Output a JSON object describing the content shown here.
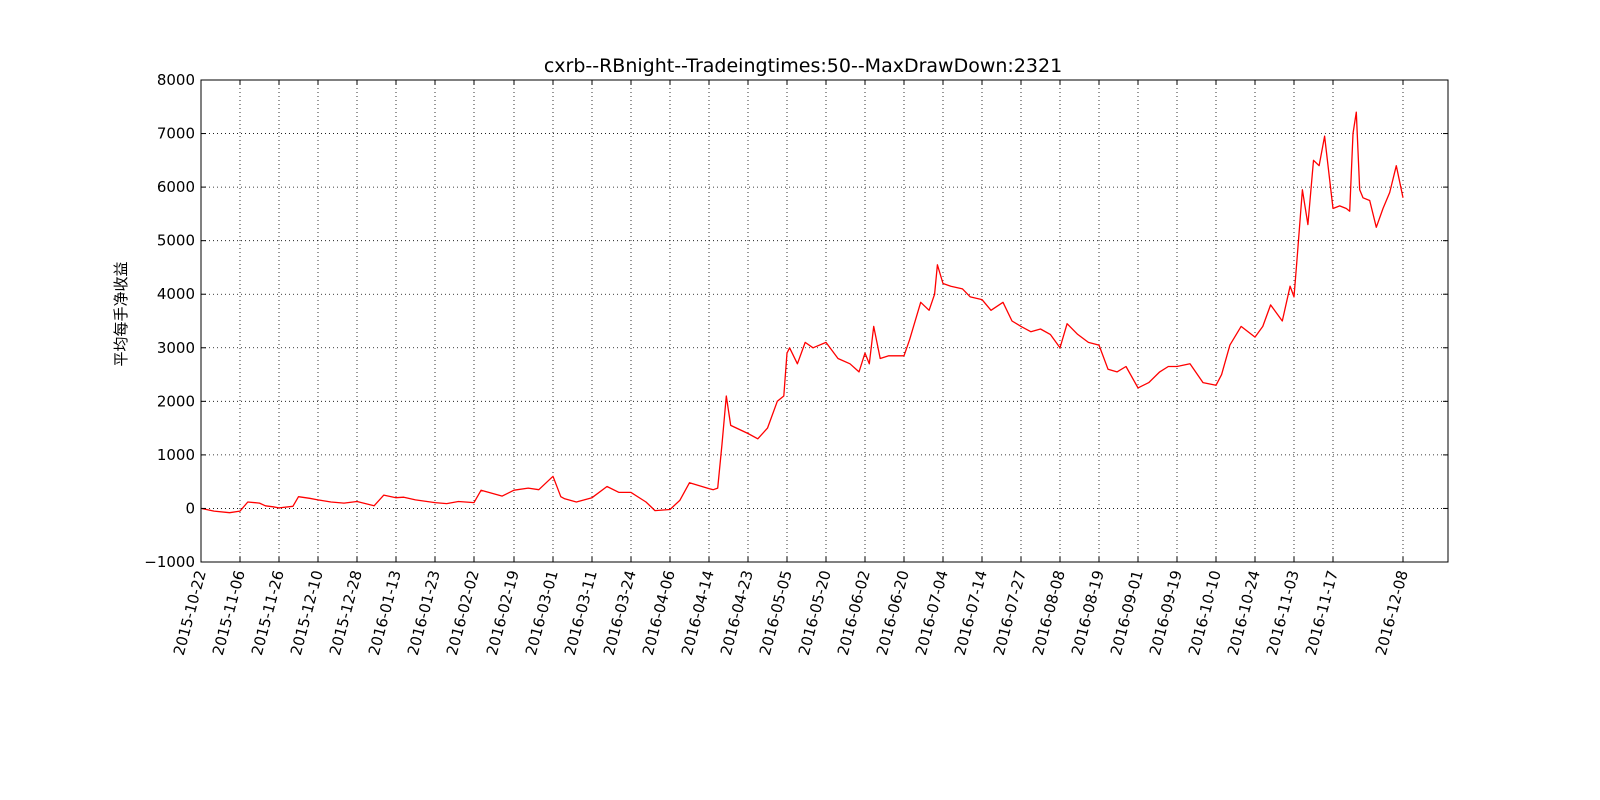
{
  "chart_data": {
    "type": "line",
    "title": "cxrb--RBnight--Tradeingtimes:50--MaxDrawDown:2321",
    "xlabel": "",
    "ylabel": "平均每手净收益",
    "ylim": [
      -1000,
      8000
    ],
    "yticks": [
      -1000,
      0,
      1000,
      2000,
      3000,
      4000,
      5000,
      6000,
      7000,
      8000
    ],
    "ytick_labels": [
      "−1000",
      "0",
      "1000",
      "2000",
      "3000",
      "4000",
      "5000",
      "6000",
      "7000",
      "8000"
    ],
    "xticks": [
      "2015-10-22",
      "2015-11-06",
      "2015-11-26",
      "2015-12-10",
      "2015-12-28",
      "2016-01-13",
      "2016-01-23",
      "2016-02-02",
      "2016-02-19",
      "2016-03-01",
      "2016-03-11",
      "2016-03-24",
      "2016-04-06",
      "2016-04-14",
      "2016-04-23",
      "2016-05-05",
      "2016-05-20",
      "2016-06-02",
      "2016-06-20",
      "2016-07-04",
      "2016-07-14",
      "2016-07-27",
      "2016-08-08",
      "2016-08-19",
      "2016-09-01",
      "2016-09-19",
      "2016-10-10",
      "2016-10-24",
      "2016-11-03",
      "2016-11-17",
      "2016-12-08"
    ],
    "grid": true,
    "line_color": "#ff0000",
    "series": [
      {
        "x": [
          "2015-10-22",
          "2015-10-27",
          "2015-11-02",
          "2015-11-06",
          "2015-11-10",
          "2015-11-16",
          "2015-11-19",
          "2015-11-23",
          "2015-11-26",
          "2015-12-01",
          "2015-12-03",
          "2015-12-07",
          "2015-12-10",
          "2015-12-16",
          "2015-12-22",
          "2015-12-28",
          "2016-01-04",
          "2016-01-08",
          "2016-01-13",
          "2016-01-15",
          "2016-01-18",
          "2016-01-23",
          "2016-01-26",
          "2016-01-29",
          "2016-02-02",
          "2016-02-05",
          "2016-02-14",
          "2016-02-19",
          "2016-02-23",
          "2016-02-26",
          "2016-03-01",
          "2016-03-03",
          "2016-03-04",
          "2016-03-07",
          "2016-03-11",
          "2016-03-16",
          "2016-03-20",
          "2016-03-24",
          "2016-03-29",
          "2016-04-01",
          "2016-04-06",
          "2016-04-08",
          "2016-04-10",
          "2016-04-14",
          "2016-04-15",
          "2016-04-16",
          "2016-04-17",
          "2016-04-18",
          "2016-04-19",
          "2016-04-23",
          "2016-04-26",
          "2016-04-29",
          "2016-05-02",
          "2016-05-04",
          "2016-05-05",
          "2016-05-06",
          "2016-05-09",
          "2016-05-12",
          "2016-05-15",
          "2016-05-20",
          "2016-05-24",
          "2016-05-28",
          "2016-05-31",
          "2016-06-02",
          "2016-06-04",
          "2016-06-06",
          "2016-06-09",
          "2016-06-13",
          "2016-06-17",
          "2016-06-20",
          "2016-06-22",
          "2016-06-26",
          "2016-06-29",
          "2016-07-01",
          "2016-07-02",
          "2016-07-04",
          "2016-07-06",
          "2016-07-09",
          "2016-07-11",
          "2016-07-14",
          "2016-07-17",
          "2016-07-21",
          "2016-07-24",
          "2016-07-27",
          "2016-07-30",
          "2016-08-02",
          "2016-08-05",
          "2016-08-08",
          "2016-08-10",
          "2016-08-13",
          "2016-08-16",
          "2016-08-19",
          "2016-08-22",
          "2016-08-25",
          "2016-08-28",
          "2016-09-01",
          "2016-09-06",
          "2016-09-11",
          "2016-09-15",
          "2016-09-19",
          "2016-09-26",
          "2016-10-03",
          "2016-10-10",
          "2016-10-12",
          "2016-10-15",
          "2016-10-19",
          "2016-10-24",
          "2016-10-26",
          "2016-10-28",
          "2016-10-31",
          "2016-11-02",
          "2016-11-03",
          "2016-11-04",
          "2016-11-06",
          "2016-11-08",
          "2016-11-10",
          "2016-11-12",
          "2016-11-14",
          "2016-11-17",
          "2016-11-19",
          "2016-11-21",
          "2016-11-22",
          "2016-11-23",
          "2016-11-24",
          "2016-11-25",
          "2016-11-26",
          "2016-11-28",
          "2016-11-30",
          "2016-12-02",
          "2016-12-04",
          "2016-12-06",
          "2016-12-08"
        ],
        "y": [
          0,
          -50,
          -80,
          -50,
          120,
          100,
          50,
          30,
          10,
          40,
          220,
          190,
          160,
          120,
          100,
          130,
          50,
          250,
          200,
          210,
          160,
          110,
          90,
          130,
          110,
          340,
          230,
          340,
          380,
          350,
          600,
          220,
          180,
          120,
          200,
          410,
          300,
          300,
          120,
          -40,
          -20,
          150,
          480,
          370,
          350,
          380,
          1200,
          2100,
          1550,
          1400,
          1300,
          1500,
          2000,
          2100,
          2900,
          3000,
          2700,
          3100,
          3000,
          3100,
          2800,
          2700,
          2550,
          2900,
          2700,
          3400,
          2800,
          2850,
          2850,
          2850,
          3150,
          3850,
          3700,
          4000,
          4550,
          4200,
          4150,
          4100,
          3950,
          3900,
          3700,
          3850,
          3500,
          3400,
          3300,
          3350,
          3250,
          3000,
          3450,
          3250,
          3100,
          3050,
          2600,
          2550,
          2650,
          2250,
          2350,
          2550,
          2650,
          2650,
          2700,
          2350,
          2300,
          2500,
          3050,
          3400,
          3200,
          3400,
          3800,
          3500,
          4150,
          3950,
          4600,
          5950,
          5300,
          6500,
          6400,
          6950,
          5600,
          5650,
          5600,
          5550,
          7000,
          7400,
          5950,
          5800,
          5750,
          5250,
          5600,
          5900,
          6400,
          5800
        ]
      }
    ]
  }
}
